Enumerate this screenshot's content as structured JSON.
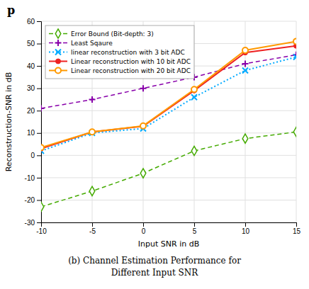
{
  "chart_data": {
    "type": "line",
    "xlabel": "Input SNR in dB",
    "ylabel": "Reconstruction-SNR in dB",
    "annotations": [
      "p",
      "(b) Channel Estimation Performance for",
      "Different Input SNR"
    ],
    "x": [
      -10,
      -5,
      0,
      5,
      10,
      15
    ],
    "series": [
      {
        "name": "Error Bound (Bit-depth: 3)",
        "color": "#44AA00",
        "marker": "diamond",
        "line_style": "dashed",
        "values": [
          -23,
          -16,
          -8,
          2,
          7.5,
          10.5
        ]
      },
      {
        "name": "Least Sqaure",
        "color": "#8800AA",
        "marker": "plus",
        "line_style": "dashed",
        "values": [
          21,
          25,
          30,
          35,
          41,
          45
        ]
      },
      {
        "name": "linear reconstruction with 3 bit ADC",
        "color": "#00AAFF",
        "marker": "x",
        "line_style": "dotted",
        "values": [
          2,
          10,
          12,
          26,
          38,
          44
        ]
      },
      {
        "name": "Linear reconstruction with 10 bit ADC",
        "color": "#EE2222",
        "marker": "circle",
        "line_style": "solid",
        "values": [
          3,
          10.5,
          13,
          29,
          46,
          49
        ]
      },
      {
        "name": "Linear reconstruction with 20 bit ADC",
        "color": "#FF9900",
        "marker": "open_circle",
        "line_style": "solid",
        "values": [
          3.5,
          10.5,
          13.2,
          29.5,
          47,
          51
        ]
      }
    ],
    "xlim": [
      -10,
      15
    ],
    "ylim": [
      -30,
      60
    ],
    "xticks": [
      -10,
      -5,
      0,
      5,
      10,
      15
    ],
    "yticks": [
      -30,
      -20,
      -10,
      0,
      10,
      20,
      30,
      40,
      50,
      60
    ],
    "grid": true,
    "legend": "upper left"
  }
}
